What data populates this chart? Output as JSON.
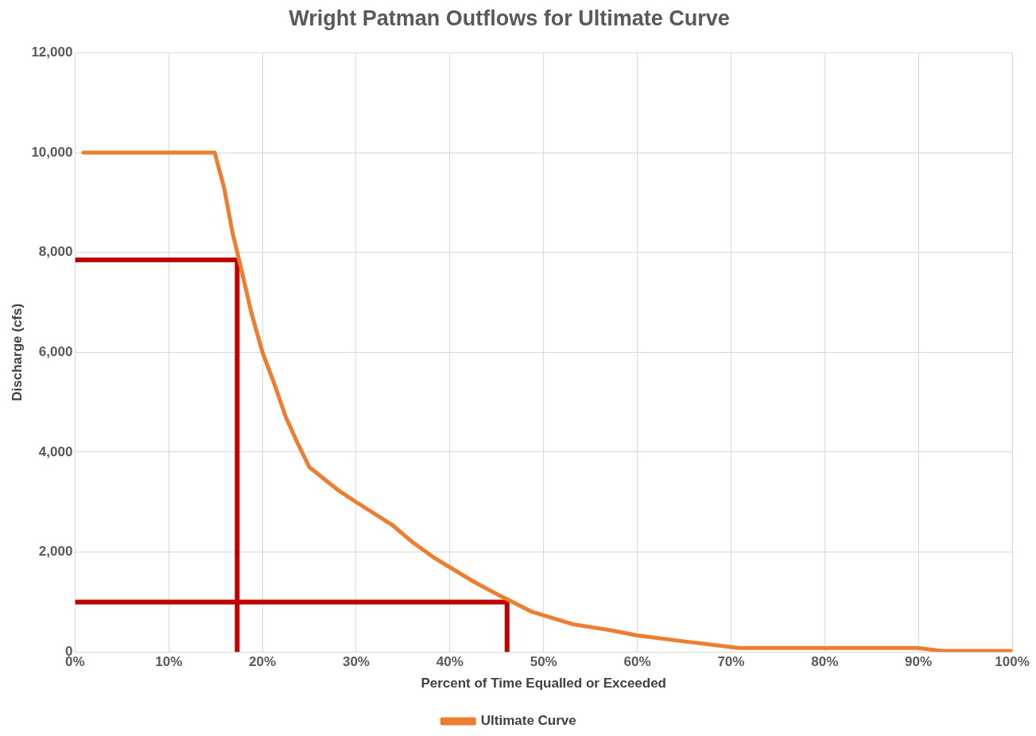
{
  "chart_data": {
    "type": "line",
    "title": "Wright Patman Outflows for Ultimate Curve",
    "xlabel": "Percent of Time Equalled or Exceeded",
    "ylabel": "Discharge (cfs)",
    "xlim": [
      0,
      100
    ],
    "xticks": [
      {
        "value": 0,
        "label": "0%"
      },
      {
        "value": 10,
        "label": "10%"
      },
      {
        "value": 20,
        "label": "20%"
      },
      {
        "value": 30,
        "label": "30%"
      },
      {
        "value": 40,
        "label": "40%"
      },
      {
        "value": 50,
        "label": "50%"
      },
      {
        "value": 60,
        "label": "60%"
      },
      {
        "value": 70,
        "label": "70%"
      },
      {
        "value": 80,
        "label": "80%"
      },
      {
        "value": 90,
        "label": "90%"
      },
      {
        "value": 100,
        "label": "100%"
      }
    ],
    "ylim": [
      0,
      12000
    ],
    "yticks": [
      {
        "value": 0,
        "label": "0"
      },
      {
        "value": 2000,
        "label": "2,000"
      },
      {
        "value": 4000,
        "label": "4,000"
      },
      {
        "value": 6000,
        "label": "6,000"
      },
      {
        "value": 8000,
        "label": "8,000"
      },
      {
        "value": 10000,
        "label": "10,000"
      },
      {
        "value": 12000,
        "label": "12,000"
      }
    ],
    "grid": true,
    "legend": "bottom",
    "marker": "none",
    "line_style": "solid",
    "series": [
      {
        "name": "Ultimate Curve",
        "color": "#ed7d31",
        "x": [
          0.9,
          14.9,
          15.9,
          16.8,
          17.7,
          18.8,
          20.0,
          21.2,
          22.5,
          23.7,
          25.0,
          28.0,
          30.0,
          33.8,
          36.0,
          38.2,
          42.6,
          45.6,
          48.8,
          53.2,
          57.3,
          60.0,
          64.6,
          70.8,
          89.9,
          92.5,
          100
        ],
        "values": [
          10000,
          10000,
          9300,
          8400,
          7700,
          6800,
          6000,
          5400,
          4700,
          4200,
          3700,
          3250,
          3000,
          2550,
          2200,
          1900,
          1400,
          1100,
          800,
          550,
          430,
          330,
          220,
          80,
          80,
          20,
          20
        ]
      },
      {
        "color": "#c00000",
        "x": [
          0,
          17.3,
          17.3
        ],
        "values": [
          7850,
          7850,
          0
        ]
      },
      {
        "color": "#c00000",
        "x": [
          0,
          46.1,
          46.1
        ],
        "values": [
          1000,
          1000,
          0
        ]
      }
    ]
  }
}
